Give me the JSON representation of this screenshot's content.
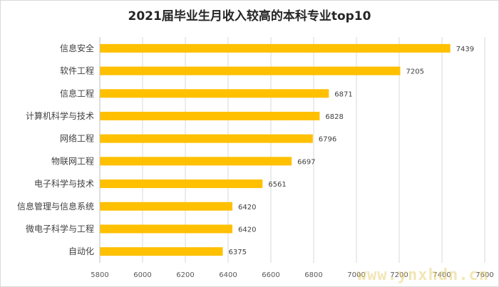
{
  "chart_data": {
    "type": "bar",
    "orientation": "horizontal",
    "title": "2021届毕业生月收入较高的本科专业top10",
    "categories": [
      "信息安全",
      "软件工程",
      "信息工程",
      "计算机科学与技术",
      "网络工程",
      "物联网工程",
      "电子科学与技术",
      "信息管理与信息系统",
      "微电子科学与工程",
      "自动化"
    ],
    "values": [
      7439,
      7205,
      6871,
      6828,
      6796,
      6697,
      6561,
      6420,
      6420,
      6375
    ],
    "xlim": [
      5800,
      7600
    ],
    "xticks": [
      "5800",
      "6000",
      "6200",
      "6400",
      "6600",
      "6800",
      "7000",
      "7200",
      "7400",
      "7600"
    ],
    "grid": true,
    "bar_color": "#ffc000",
    "grid_color": "#d9d9d9"
  },
  "watermark": "www.ynxhdn.cn"
}
